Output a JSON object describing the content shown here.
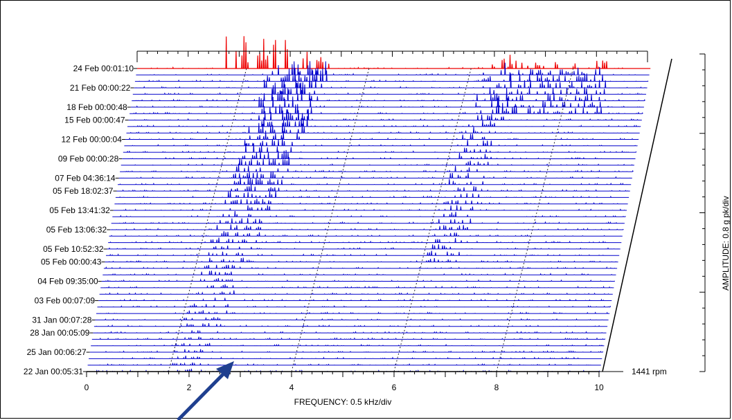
{
  "chart_data": {
    "type": "waterfall",
    "xlabel": "FREQUENCY: 0.5 kHz/div",
    "ylabel": "AMPLITUDE: 0.8 g pk/div",
    "x_ticks": [
      0,
      2,
      4,
      6,
      8,
      10
    ],
    "xlim": [
      0,
      10
    ],
    "speed_label": "1441 rpm",
    "trace_labels": [
      "24 Feb 00:01:10",
      "21 Feb 00:00:22",
      "18 Feb 00:00:48",
      "15 Feb 00:00:47",
      "12 Feb 00:00:04",
      "09 Feb 00:00:28",
      "07 Feb 04:36:14",
      "05 Feb 18:02:37",
      "05 Feb 13:41:32",
      "05 Feb 13:06:32",
      "05 Feb 10:52:32",
      "05 Feb 00:00:43",
      "04 Feb 09:35:00",
      "03 Feb 00:07:09",
      "31 Jan 00:07:28",
      "28 Jan 00:05:09",
      "25 Jan 00:06:27",
      "22 Jan 00:05:31"
    ],
    "trace_count": 48,
    "highlighted_trace": "24 Feb 00:01:10",
    "colors": {
      "trace": "#0000cc",
      "highlight": "#ee0000",
      "annotation_arrow": "#1f3f8f",
      "axes": "#000000"
    }
  }
}
